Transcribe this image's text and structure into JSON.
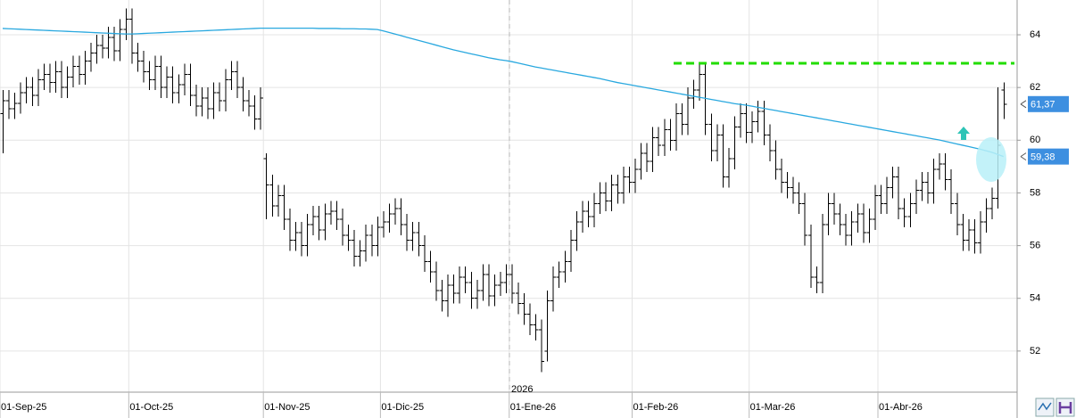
{
  "chart_data": {
    "type": "ohlc",
    "categories": [
      "01-Sep-25",
      null,
      null,
      null,
      null,
      null,
      null,
      null,
      null,
      null,
      null,
      null,
      null,
      null,
      null,
      null,
      null,
      null,
      null,
      null,
      null,
      null,
      "01-Oct-25",
      null,
      null,
      null,
      null,
      null,
      null,
      null,
      null,
      null,
      null,
      null,
      null,
      null,
      null,
      null,
      null,
      null,
      null,
      null,
      null,
      null,
      null,
      "01-Nov-25",
      null,
      null,
      null,
      null,
      null,
      null,
      null,
      null,
      null,
      null,
      null,
      null,
      null,
      null,
      null,
      null,
      null,
      null,
      null,
      "01-Dic-25",
      null,
      null,
      null,
      null,
      null,
      null,
      null,
      null,
      null,
      null,
      null,
      null,
      null,
      null,
      null,
      null,
      null,
      null,
      null,
      null,
      null,
      "01-Ene-26",
      null,
      null,
      null,
      null,
      null,
      null,
      null,
      null,
      null,
      null,
      null,
      null,
      null,
      null,
      null,
      null,
      null,
      null,
      null,
      null,
      "01-Feb-26",
      null,
      null,
      null,
      null,
      null,
      null,
      null,
      null,
      null,
      null,
      null,
      null,
      null,
      null,
      null,
      null,
      null,
      null,
      null,
      "01-Mar-26",
      null,
      null,
      null,
      null,
      null,
      null,
      null,
      null,
      null,
      null,
      null,
      null,
      null,
      null,
      null,
      null,
      null,
      null,
      null,
      null,
      null,
      "01-Abr-26",
      null,
      null,
      null,
      null,
      null,
      null,
      null,
      null,
      null,
      null,
      null,
      null,
      null,
      null,
      null,
      null,
      null,
      null,
      null,
      null,
      null
    ],
    "open": [
      61.0,
      61.5,
      61.2,
      61.4,
      61.8,
      62.0,
      61.7,
      62.3,
      62.5,
      62.2,
      62.6,
      62.0,
      62.4,
      62.8,
      62.5,
      63.0,
      63.3,
      63.6,
      63.5,
      63.9,
      63.4,
      64.2,
      64.6,
      63.3,
      63.0,
      62.6,
      62.3,
      62.8,
      62.0,
      62.4,
      61.8,
      62.1,
      62.5,
      61.7,
      61.3,
      61.6,
      61.2,
      61.8,
      61.5,
      62.3,
      62.6,
      62.0,
      61.5,
      61.3,
      60.8,
      59.3,
      58.3,
      57.5,
      57.9,
      57.0,
      56.2,
      56.5,
      56.0,
      56.8,
      57.1,
      56.6,
      57.2,
      57.3,
      57.0,
      56.4,
      56.2,
      55.6,
      55.8,
      56.4,
      56.0,
      56.7,
      56.9,
      57.2,
      57.4,
      56.8,
      56.2,
      56.5,
      56.0,
      55.4,
      55.0,
      54.3,
      53.9,
      54.5,
      54.2,
      54.8,
      54.6,
      54.0,
      54.3,
      54.9,
      54.1,
      54.5,
      54.6,
      54.9,
      54.2,
      53.8,
      53.4,
      53.0,
      52.8,
      52.0,
      53.9,
      54.8,
      55.0,
      55.4,
      56.2,
      56.9,
      57.3,
      57.1,
      57.6,
      58.0,
      57.7,
      58.3,
      58.0,
      58.6,
      58.4,
      58.9,
      59.5,
      59.2,
      60.1,
      59.8,
      60.4,
      60.0,
      61.0,
      60.6,
      61.6,
      61.9,
      62.5,
      60.6,
      59.6,
      60.2,
      58.6,
      59.3,
      60.5,
      61.0,
      60.3,
      60.7,
      61.1,
      60.2,
      59.6,
      58.9,
      58.4,
      58.2,
      58.0,
      57.6,
      56.4,
      54.8,
      54.6,
      56.8,
      57.6,
      57.2,
      56.8,
      56.4,
      56.9,
      57.2,
      56.5,
      57.0,
      57.9,
      57.6,
      58.2,
      58.6,
      57.4,
      57.1,
      57.6,
      58.1,
      58.4,
      58.0,
      58.9,
      59.1,
      58.5,
      57.6,
      56.8,
      56.2,
      56.6,
      56.1,
      56.9,
      57.4,
      57.8,
      61.9
    ],
    "high": [
      61.9,
      61.9,
      61.8,
      62.2,
      62.4,
      62.4,
      62.7,
      62.9,
      62.9,
      63.0,
      63.0,
      62.8,
      63.2,
      63.2,
      63.4,
      63.7,
      64.0,
      64.0,
      64.3,
      64.3,
      64.6,
      65.0,
      65.0,
      63.7,
      63.4,
      63.0,
      63.2,
      63.2,
      62.8,
      62.8,
      62.5,
      62.9,
      62.9,
      62.1,
      62.0,
      62.0,
      62.2,
      62.2,
      62.7,
      63.0,
      63.0,
      62.4,
      61.9,
      61.7,
      62.0,
      59.5,
      58.7,
      58.3,
      58.3,
      57.4,
      56.9,
      56.9,
      57.2,
      57.5,
      57.5,
      57.6,
      57.7,
      57.7,
      57.4,
      56.8,
      56.6,
      56.2,
      56.8,
      56.8,
      57.1,
      57.3,
      57.6,
      57.8,
      57.8,
      57.2,
      56.9,
      56.9,
      56.4,
      55.8,
      55.4,
      54.7,
      54.9,
      54.9,
      55.2,
      55.2,
      55.0,
      54.7,
      55.3,
      55.3,
      54.9,
      55.0,
      55.3,
      55.3,
      54.6,
      54.2,
      53.8,
      53.4,
      53.2,
      54.3,
      55.2,
      55.4,
      55.8,
      56.6,
      57.3,
      57.7,
      57.7,
      58.0,
      58.4,
      58.4,
      58.7,
      58.7,
      59.0,
      59.0,
      59.3,
      59.9,
      59.9,
      60.5,
      60.5,
      60.8,
      60.8,
      61.4,
      61.4,
      62.0,
      62.3,
      62.9,
      62.9,
      61.0,
      60.6,
      60.6,
      59.7,
      60.9,
      61.4,
      61.4,
      61.1,
      61.5,
      61.5,
      60.6,
      60.0,
      59.3,
      58.8,
      58.6,
      58.4,
      58.0,
      56.8,
      55.2,
      57.2,
      58.0,
      58.0,
      57.6,
      57.2,
      57.3,
      57.6,
      57.6,
      57.4,
      58.3,
      58.3,
      58.6,
      59.0,
      59.0,
      57.8,
      58.0,
      58.5,
      58.8,
      58.8,
      59.3,
      59.5,
      59.5,
      58.9,
      58.0,
      57.2,
      57.0,
      57.0,
      57.3,
      57.8,
      58.2,
      62.0,
      62.2
    ],
    "low": [
      59.5,
      60.8,
      60.8,
      61.0,
      61.4,
      61.3,
      61.3,
      61.9,
      61.8,
      61.8,
      61.6,
      61.6,
      62.0,
      62.1,
      62.1,
      62.6,
      62.9,
      63.1,
      63.1,
      63.0,
      63.0,
      63.8,
      62.9,
      62.6,
      62.2,
      61.9,
      61.9,
      61.6,
      61.6,
      61.4,
      61.4,
      61.7,
      61.3,
      60.9,
      60.9,
      60.8,
      60.8,
      61.1,
      61.1,
      61.9,
      61.6,
      61.1,
      60.9,
      60.4,
      60.4,
      57.0,
      57.1,
      57.1,
      56.6,
      55.8,
      55.8,
      55.6,
      55.6,
      56.4,
      56.2,
      56.2,
      56.8,
      56.6,
      56.0,
      55.8,
      55.2,
      55.2,
      55.4,
      55.6,
      55.6,
      56.3,
      56.5,
      56.8,
      56.4,
      55.8,
      55.8,
      55.6,
      55.0,
      54.6,
      53.9,
      53.5,
      53.3,
      53.8,
      53.8,
      54.2,
      53.6,
      53.6,
      53.9,
      53.7,
      53.7,
      54.1,
      54.2,
      53.8,
      53.4,
      53.0,
      52.6,
      52.4,
      51.2,
      51.6,
      53.5,
      54.4,
      54.6,
      55.0,
      55.8,
      56.5,
      56.7,
      56.7,
      57.2,
      57.3,
      57.3,
      57.6,
      57.6,
      58.0,
      58.0,
      58.5,
      58.8,
      58.8,
      59.4,
      59.4,
      59.6,
      59.6,
      60.2,
      60.2,
      61.2,
      61.5,
      60.2,
      59.2,
      59.2,
      58.2,
      58.2,
      58.9,
      60.1,
      59.9,
      59.9,
      60.3,
      59.8,
      59.2,
      58.5,
      58.0,
      57.8,
      57.6,
      57.2,
      56.0,
      54.4,
      54.2,
      54.2,
      56.4,
      56.8,
      56.4,
      56.0,
      56.0,
      56.5,
      56.1,
      56.1,
      56.6,
      57.2,
      57.2,
      57.8,
      57.0,
      56.7,
      56.7,
      57.2,
      57.7,
      57.6,
      57.6,
      58.5,
      58.1,
      57.2,
      56.4,
      55.8,
      55.8,
      55.7,
      55.7,
      56.5,
      57.0,
      57.4,
      60.8
    ],
    "close": [
      61.5,
      61.2,
      61.4,
      61.8,
      62.0,
      61.7,
      62.3,
      62.5,
      62.2,
      62.6,
      62.0,
      62.4,
      62.8,
      62.5,
      63.0,
      63.3,
      63.6,
      63.5,
      63.9,
      63.4,
      64.2,
      64.6,
      63.3,
      63.0,
      62.6,
      62.3,
      62.8,
      62.0,
      62.4,
      61.8,
      62.1,
      62.5,
      61.7,
      61.3,
      61.6,
      61.2,
      61.8,
      61.5,
      62.3,
      62.6,
      62.0,
      61.5,
      61.3,
      60.8,
      61.6,
      58.3,
      57.5,
      57.9,
      57.0,
      56.2,
      56.5,
      56.0,
      56.8,
      57.1,
      56.6,
      57.2,
      57.3,
      57.0,
      56.4,
      56.2,
      55.6,
      55.8,
      56.4,
      56.0,
      56.7,
      56.9,
      57.2,
      57.4,
      56.8,
      56.2,
      56.5,
      56.0,
      55.4,
      55.0,
      54.3,
      53.9,
      54.5,
      54.2,
      54.8,
      54.6,
      54.0,
      54.3,
      54.9,
      54.1,
      54.5,
      54.6,
      54.9,
      54.2,
      53.8,
      53.4,
      53.0,
      52.8,
      51.6,
      53.9,
      54.8,
      55.0,
      55.4,
      56.2,
      56.9,
      57.3,
      57.1,
      57.6,
      58.0,
      57.7,
      58.3,
      58.0,
      58.6,
      58.4,
      58.9,
      59.5,
      59.2,
      60.1,
      59.8,
      60.4,
      60.0,
      61.0,
      60.6,
      61.6,
      61.9,
      62.5,
      60.6,
      59.6,
      60.2,
      58.6,
      59.3,
      60.5,
      61.0,
      60.3,
      60.7,
      61.1,
      60.2,
      59.6,
      58.9,
      58.4,
      58.2,
      58.0,
      57.6,
      56.4,
      54.8,
      54.6,
      56.8,
      57.6,
      57.2,
      56.8,
      56.4,
      56.9,
      57.2,
      56.5,
      57.0,
      57.9,
      57.6,
      58.2,
      58.6,
      57.4,
      57.1,
      57.6,
      58.1,
      58.4,
      58.0,
      58.9,
      59.1,
      58.5,
      57.6,
      56.8,
      56.2,
      56.6,
      56.1,
      56.9,
      57.4,
      57.8,
      59.8,
      61.37
    ],
    "bar_color": "#000000",
    "last_close_label": "61,37",
    "tag_color": "#3d8fe0",
    "moving_average": {
      "color": "#29a8df",
      "last_label": "59,38",
      "values": [
        64.24,
        64.23,
        64.22,
        64.21,
        64.2,
        64.19,
        64.18,
        64.17,
        64.16,
        64.15,
        64.14,
        64.13,
        64.12,
        64.11,
        64.1,
        64.09,
        64.08,
        64.07,
        64.06,
        64.05,
        64.04,
        64.03,
        64.03,
        64.04,
        64.05,
        64.06,
        64.07,
        64.08,
        64.09,
        64.1,
        64.11,
        64.12,
        64.13,
        64.14,
        64.15,
        64.16,
        64.17,
        64.18,
        64.19,
        64.2,
        64.21,
        64.22,
        64.23,
        64.24,
        64.25,
        64.25,
        64.25,
        64.25,
        64.25,
        64.25,
        64.25,
        64.25,
        64.25,
        64.25,
        64.24,
        64.24,
        64.24,
        64.24,
        64.23,
        64.23,
        64.23,
        64.22,
        64.22,
        64.21,
        64.2,
        64.15,
        64.09,
        64.03,
        63.97,
        63.91,
        63.85,
        63.79,
        63.73,
        63.67,
        63.61,
        63.55,
        63.49,
        63.43,
        63.38,
        63.33,
        63.28,
        63.23,
        63.18,
        63.13,
        63.09,
        63.05,
        63.02,
        62.98,
        62.93,
        62.88,
        62.83,
        62.78,
        62.74,
        62.7,
        62.66,
        62.62,
        62.58,
        62.54,
        62.5,
        62.46,
        62.42,
        62.38,
        62.34,
        62.29,
        62.24,
        62.19,
        62.15,
        62.11,
        62.07,
        62.03,
        61.99,
        61.95,
        61.91,
        61.87,
        61.83,
        61.79,
        61.75,
        61.71,
        61.67,
        61.63,
        61.59,
        61.55,
        61.51,
        61.47,
        61.43,
        61.39,
        61.36,
        61.33,
        61.29,
        61.25,
        61.21,
        61.17,
        61.13,
        61.09,
        61.05,
        61.01,
        60.97,
        60.93,
        60.89,
        60.85,
        60.81,
        60.77,
        60.73,
        60.69,
        60.65,
        60.61,
        60.57,
        60.53,
        60.49,
        60.45,
        60.41,
        60.37,
        60.33,
        60.29,
        60.25,
        60.21,
        60.17,
        60.13,
        60.09,
        60.05,
        60.01,
        59.96,
        59.91,
        59.86,
        59.81,
        59.76,
        59.71,
        59.66,
        59.6,
        59.54,
        59.46,
        59.38
      ]
    },
    "level_line": {
      "value": 62.92,
      "color": "#22dd00"
    },
    "year_marker": "2026",
    "ylim": [
      50.44,
      65.32
    ],
    "yticks": [
      52,
      54,
      56,
      58,
      60,
      62,
      64
    ],
    "grid": true
  }
}
